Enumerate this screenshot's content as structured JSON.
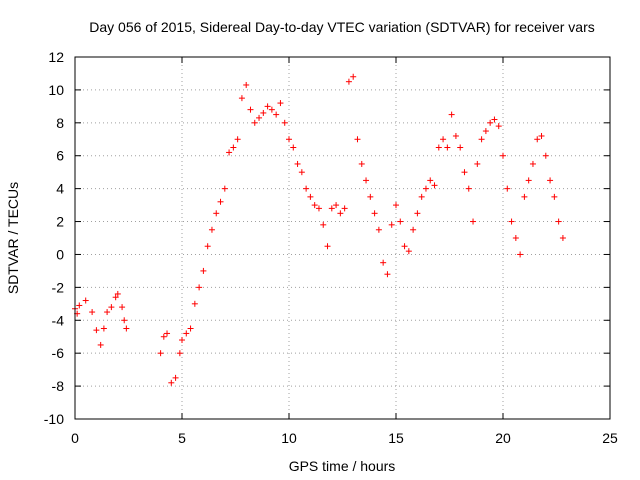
{
  "chart_data": {
    "type": "scatter",
    "title": "Day 056 of 2015, Sidereal Day-to-day VTEC variation (SDTVAR) for receiver vars",
    "xlabel": "GPS time / hours",
    "ylabel": "SDTVAR / TECUs",
    "xlim": [
      0,
      25
    ],
    "ylim": [
      -10,
      12
    ],
    "xticks": [
      0,
      5,
      10,
      15,
      20,
      25
    ],
    "yticks": [
      -10,
      -8,
      -6,
      -4,
      -2,
      0,
      2,
      4,
      6,
      8,
      10,
      12
    ],
    "grid": true,
    "marker": "plus",
    "marker_color": "#ff0000",
    "series": [
      {
        "name": "vars",
        "x": [
          0.0,
          0.1,
          0.2,
          0.5,
          0.8,
          1.0,
          1.2,
          1.35,
          1.5,
          1.7,
          1.9,
          2.0,
          2.2,
          2.3,
          2.4,
          4.0,
          4.15,
          4.3,
          4.5,
          4.7,
          4.9,
          5.0,
          5.2,
          5.4,
          5.6,
          5.8,
          6.0,
          6.2,
          6.4,
          6.6,
          6.8,
          7.0,
          7.2,
          7.4,
          7.6,
          7.8,
          8.0,
          8.2,
          8.4,
          8.6,
          8.8,
          9.0,
          9.2,
          9.4,
          9.6,
          9.8,
          10.0,
          10.2,
          10.4,
          10.6,
          10.8,
          11.0,
          11.2,
          11.4,
          11.6,
          11.8,
          12.0,
          12.2,
          12.4,
          12.6,
          12.8,
          13.0,
          13.2,
          13.4,
          13.6,
          13.8,
          14.0,
          14.2,
          14.4,
          14.6,
          14.8,
          15.0,
          15.2,
          15.4,
          15.6,
          15.8,
          16.0,
          16.2,
          16.4,
          16.6,
          16.8,
          17.0,
          17.2,
          17.4,
          17.6,
          17.8,
          18.0,
          18.2,
          18.4,
          18.6,
          18.8,
          19.0,
          19.2,
          19.4,
          19.6,
          19.8,
          20.0,
          20.2,
          20.4,
          20.6,
          20.8,
          21.0,
          21.2,
          21.4,
          21.6,
          21.8,
          22.0,
          22.2,
          22.4,
          22.6,
          22.8
        ],
        "y": [
          -3.3,
          -3.6,
          -3.1,
          -2.8,
          -3.5,
          -4.6,
          -5.5,
          -4.5,
          -3.5,
          -3.2,
          -2.6,
          -2.4,
          -3.2,
          -4.0,
          -4.5,
          -6.0,
          -5.0,
          -4.8,
          -7.8,
          -7.5,
          -6.0,
          -5.2,
          -4.8,
          -4.5,
          -3.0,
          -2.0,
          -1.0,
          0.5,
          1.5,
          2.5,
          3.2,
          4.0,
          6.2,
          6.5,
          7.0,
          9.5,
          10.3,
          8.8,
          8.0,
          8.3,
          8.6,
          9.0,
          8.8,
          8.5,
          9.2,
          8.0,
          7.0,
          6.5,
          5.5,
          5.0,
          4.0,
          3.5,
          3.0,
          2.8,
          1.8,
          0.5,
          2.8,
          3.0,
          2.5,
          2.8,
          10.5,
          10.8,
          7.0,
          5.5,
          4.5,
          3.5,
          2.5,
          1.5,
          -0.5,
          -1.2,
          1.8,
          3.0,
          2.0,
          0.5,
          0.2,
          1.5,
          2.5,
          3.5,
          4.0,
          4.5,
          4.2,
          6.5,
          7.0,
          6.5,
          8.5,
          7.2,
          6.5,
          5.0,
          4.0,
          2.0,
          5.5,
          7.0,
          7.5,
          8.0,
          8.2,
          7.8,
          6.0,
          4.0,
          2.0,
          1.0,
          0.0,
          3.5,
          4.5,
          5.5,
          7.0,
          7.2,
          6.0,
          4.5,
          3.5,
          2.0,
          1.0
        ]
      }
    ]
  }
}
